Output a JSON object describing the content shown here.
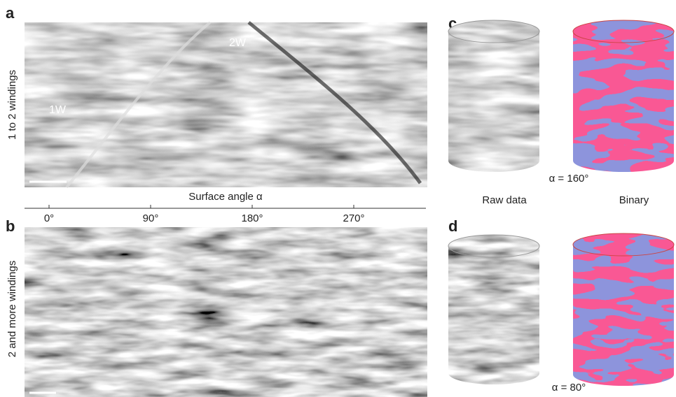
{
  "panels": {
    "a": {
      "letter": "a",
      "side_label": "1 to 2 windings",
      "annotations": [
        "1W",
        "2W"
      ]
    },
    "axis": {
      "label": "Surface angle α",
      "ticks": [
        "0°",
        "90°",
        "180°",
        "270°"
      ]
    },
    "b": {
      "letter": "b",
      "side_label": "2 and more windings"
    },
    "c": {
      "letter": "c",
      "angle": "α = 160°",
      "columns": [
        "Raw data",
        "Binary"
      ]
    },
    "d": {
      "letter": "d",
      "angle": "α = 80°"
    }
  }
}
